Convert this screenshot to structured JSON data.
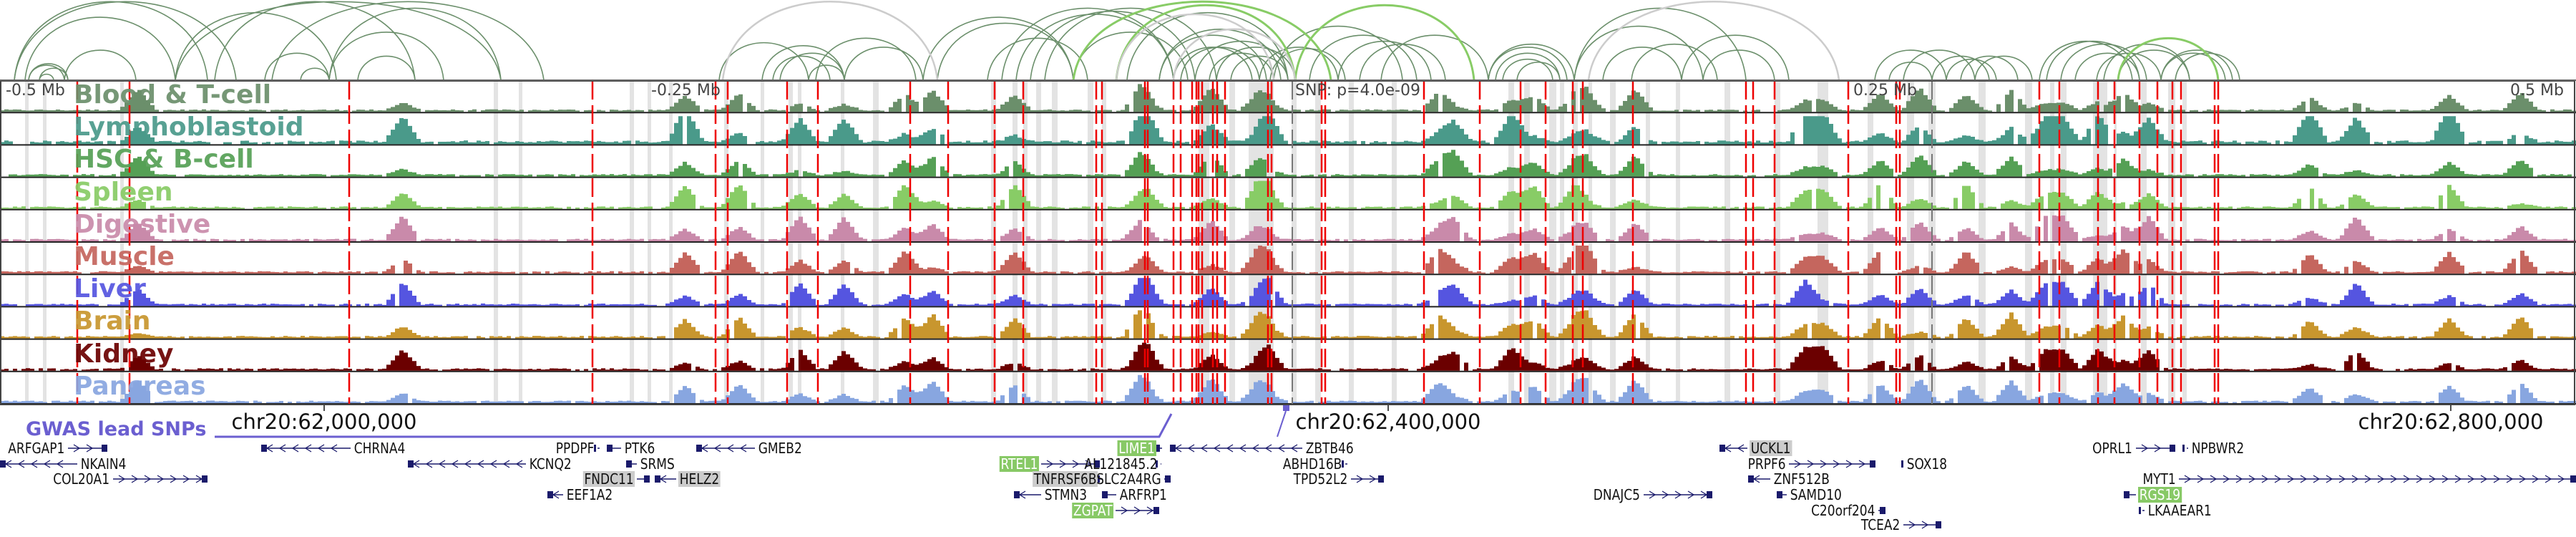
{
  "region": {
    "mb_labels": [
      "-0.5 Mb",
      "-0.25 Mb",
      "0.25 Mb",
      "0.5 Mb"
    ],
    "snp_label": "SNP: p=4.0e-09",
    "coordinates": [
      "chr20:62,000,000",
      "chr20:62,400,000",
      "chr20:62,800,000"
    ],
    "gwas_label": "GWAS lead SNPs"
  },
  "colors": {
    "arc": "#6b8f6b",
    "arc_highlight": "#88cc66",
    "arc_grey": "#cccccc",
    "snp_line": "#ee0000",
    "shade": "#e3e3e3",
    "gene": "#1a1a6b",
    "gwas": "#6b5fd0"
  },
  "tracks": [
    {
      "label": "Blood & T-cell",
      "color": "#6b8f6b"
    },
    {
      "label": "Lymphoblastoid",
      "color": "#4a9a8a"
    },
    {
      "label": "HSC & B-cell",
      "color": "#55a055"
    },
    {
      "label": "Spleen",
      "color": "#88cc66"
    },
    {
      "label": "Digestive",
      "color": "#c98aaa"
    },
    {
      "label": "Muscle",
      "color": "#c5665e"
    },
    {
      "label": "Liver",
      "color": "#5555e0"
    },
    {
      "label": "Brain",
      "color": "#c8962e"
    },
    {
      "label": "Kidney",
      "color": "#6b0000"
    },
    {
      "label": "Pancreas",
      "color": "#88a6e0"
    }
  ],
  "genes": [
    {
      "name": "ARFGAP1",
      "row": 0,
      "start": 95,
      "end": 150,
      "strand": "+",
      "side": "left",
      "hl": ""
    },
    {
      "name": "CHRNA4",
      "row": 0,
      "start": 365,
      "end": 490,
      "strand": "-",
      "side": "right",
      "hl": ""
    },
    {
      "name": "NKAIN4",
      "row": 1,
      "start": 0,
      "end": 108,
      "strand": "-",
      "side": "right",
      "hl": ""
    },
    {
      "name": "COL20A1",
      "row": 2,
      "start": 158,
      "end": 290,
      "strand": "+",
      "side": "left",
      "hl": ""
    },
    {
      "name": "KCNQ2",
      "row": 1,
      "start": 570,
      "end": 735,
      "strand": "-",
      "side": "right",
      "hl": ""
    },
    {
      "name": "PPDPF",
      "row": 0,
      "start": 835,
      "end": 838,
      "strand": "+",
      "side": "left",
      "hl": ""
    },
    {
      "name": "PTK6",
      "row": 0,
      "start": 848,
      "end": 868,
      "strand": "-",
      "side": "right",
      "hl": ""
    },
    {
      "name": "SRMS",
      "row": 1,
      "start": 875,
      "end": 890,
      "strand": "-",
      "side": "right",
      "hl": ""
    },
    {
      "name": "FNDC11",
      "row": 2,
      "start": 890,
      "end": 908,
      "strand": "+",
      "side": "left",
      "hl": "grey"
    },
    {
      "name": "HELZ2",
      "row": 2,
      "start": 915,
      "end": 945,
      "strand": "-",
      "side": "right",
      "hl": "grey"
    },
    {
      "name": "EEF1A2",
      "row": 3,
      "start": 765,
      "end": 787,
      "strand": "-",
      "side": "right",
      "hl": ""
    },
    {
      "name": "GMEB2",
      "row": 0,
      "start": 973,
      "end": 1055,
      "strand": "-",
      "side": "right",
      "hl": ""
    },
    {
      "name": "RTEL1",
      "row": 1,
      "start": 1455,
      "end": 1537,
      "strand": "+",
      "side": "left",
      "hl": "green"
    },
    {
      "name": "TNFRSF6B",
      "row": 2,
      "start": 1537,
      "end": 1541,
      "strand": "+",
      "side": "left",
      "hl": "grey"
    },
    {
      "name": "STMN3",
      "row": 3,
      "start": 1417,
      "end": 1455,
      "strand": "-",
      "side": "right",
      "hl": ""
    },
    {
      "name": "ZGPAT",
      "row": 4,
      "start": 1559,
      "end": 1620,
      "strand": "+",
      "side": "left",
      "hl": "green"
    },
    {
      "name": "LIME1",
      "row": 0,
      "start": 1619,
      "end": 1624,
      "strand": "+",
      "side": "left",
      "hl": "green"
    },
    {
      "name": "AL121845.2",
      "row": 1,
      "start": 1622,
      "end": 1623,
      "strand": "+",
      "side": "left",
      "hl": ""
    },
    {
      "name": "SLC2A4RG",
      "row": 2,
      "start": 1627,
      "end": 1636,
      "strand": "+",
      "side": "left",
      "hl": ""
    },
    {
      "name": "ARFRP1",
      "row": 3,
      "start": 1540,
      "end": 1560,
      "strand": "-",
      "side": "right",
      "hl": ""
    },
    {
      "name": "ZBTB46",
      "row": 0,
      "start": 1635,
      "end": 1820,
      "strand": "-",
      "side": "right",
      "hl": ""
    },
    {
      "name": "ABHD16B",
      "row": 1,
      "start": 1880,
      "end": 1883,
      "strand": "+",
      "side": "left",
      "hl": ""
    },
    {
      "name": "TPD52L2",
      "row": 2,
      "start": 1888,
      "end": 1934,
      "strand": "+",
      "side": "left",
      "hl": ""
    },
    {
      "name": "DNAJC5",
      "row": 3,
      "start": 2297,
      "end": 2393,
      "strand": "+",
      "side": "left",
      "hl": ""
    },
    {
      "name": "UCKL1",
      "row": 0,
      "start": 2403,
      "end": 2442,
      "strand": "-",
      "side": "right",
      "hl": "grey"
    },
    {
      "name": "PRPF6",
      "row": 1,
      "start": 2500,
      "end": 2621,
      "strand": "+",
      "side": "left",
      "hl": ""
    },
    {
      "name": "ZNF512B",
      "row": 2,
      "start": 2443,
      "end": 2474,
      "strand": "-",
      "side": "right",
      "hl": ""
    },
    {
      "name": "SAMD10",
      "row": 3,
      "start": 2483,
      "end": 2497,
      "strand": "-",
      "side": "right",
      "hl": ""
    },
    {
      "name": "C20orf204",
      "row": 4,
      "start": 2625,
      "end": 2635,
      "strand": "+",
      "side": "left",
      "hl": ""
    },
    {
      "name": "TCEA2",
      "row": 5,
      "start": 2660,
      "end": 2713,
      "strand": "+",
      "side": "left",
      "hl": ""
    },
    {
      "name": "SOX18",
      "row": 1,
      "start": 2657,
      "end": 2660,
      "strand": "-",
      "side": "right",
      "hl": ""
    },
    {
      "name": "OPRL1",
      "row": 0,
      "start": 2985,
      "end": 3040,
      "strand": "+",
      "side": "left",
      "hl": ""
    },
    {
      "name": "NPBWR2",
      "row": 0,
      "start": 3056,
      "end": 3058,
      "strand": "+",
      "side": "right",
      "hl": ""
    },
    {
      "name": "MYT1",
      "row": 2,
      "start": 3045,
      "end": 3600,
      "strand": "+",
      "side": "left",
      "hl": ""
    },
    {
      "name": "RGS19",
      "row": 3,
      "start": 2968,
      "end": 2985,
      "strand": "-",
      "side": "right",
      "hl": "green"
    },
    {
      "name": "LKAAEAR1",
      "row": 4,
      "start": 2994,
      "end": 2997,
      "strand": "+",
      "side": "right",
      "hl": ""
    }
  ]
}
